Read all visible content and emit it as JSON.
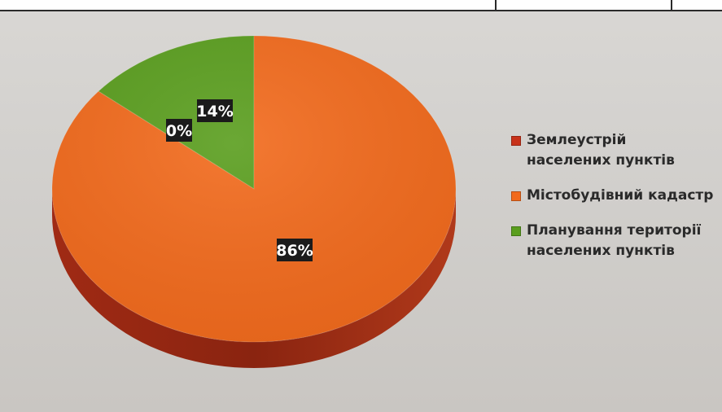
{
  "chart_data": {
    "type": "pie",
    "categories": [
      "Землеустрій населених пунктів",
      "Містобудівний кадастр",
      "Планування території населених пунктів"
    ],
    "values": [
      0,
      86,
      14
    ],
    "data_labels": [
      "0%",
      "86%",
      "14%"
    ],
    "colors": [
      "#c8321a",
      "#f26a1c",
      "#5a9e1e"
    ],
    "title": "",
    "legend_position": "right",
    "three_d": true
  }
}
